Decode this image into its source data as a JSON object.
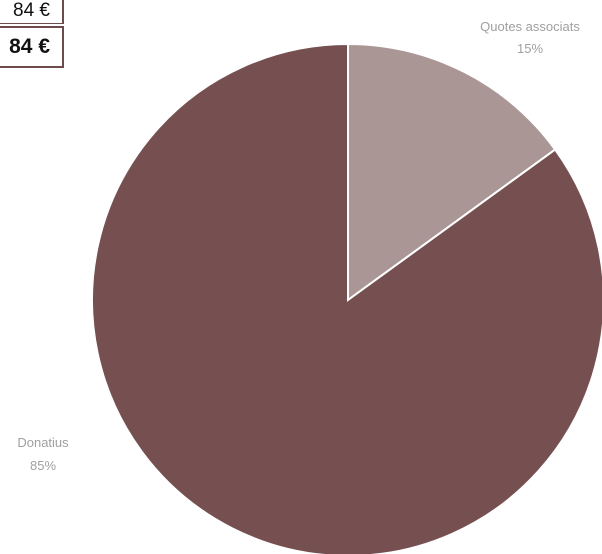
{
  "cells": {
    "row1": "84 €",
    "row2": "84 €"
  },
  "chart_data": {
    "type": "pie",
    "slices": [
      {
        "label": "Quotes associats",
        "percent_label": "15%",
        "value": 15,
        "color": "#ab9696"
      },
      {
        "label": "Donatius",
        "percent_label": "85%",
        "value": 85,
        "color": "#765050"
      }
    ],
    "start": "12 o'clock",
    "direction": "clockwise",
    "slice_border_color": "#ffffff"
  }
}
